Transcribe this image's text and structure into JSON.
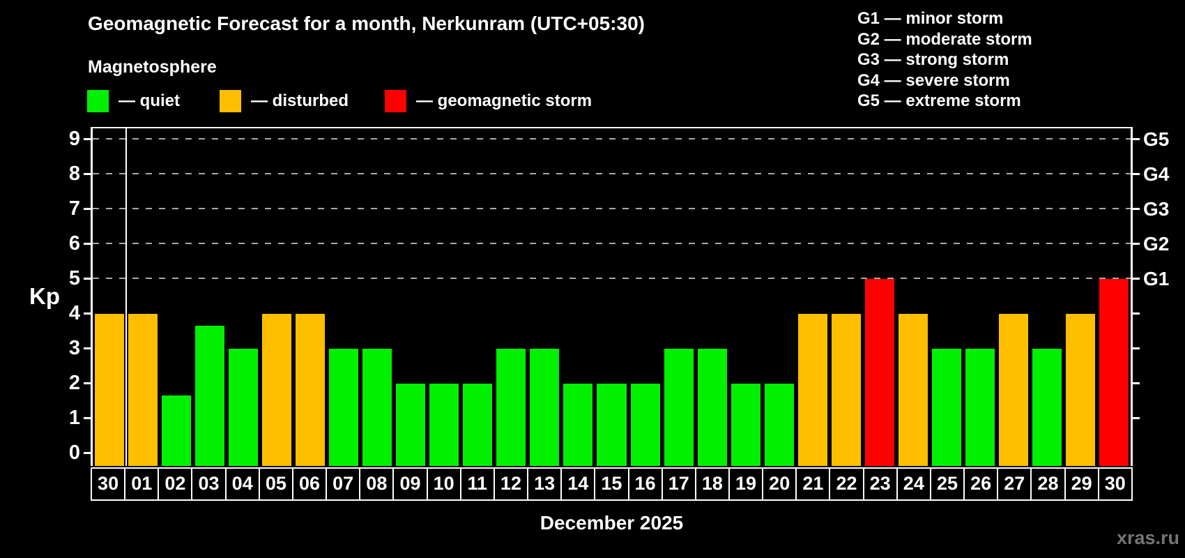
{
  "header": {
    "title": "Geomagnetic Forecast for a month, Nerkunram (UTC+05:30)",
    "subtitle": "Magnetosphere"
  },
  "legend": {
    "quiet": "— quiet",
    "disturbed": "— disturbed",
    "storm": "— geomagnetic storm"
  },
  "g_scale": [
    "G1 — minor storm",
    "G2 — moderate storm",
    "G3 — strong storm",
    "G4 — severe storm",
    "G5 — extreme storm"
  ],
  "footer": {
    "caption": "December 2025",
    "watermark": "xras.ru"
  },
  "chart_data": {
    "type": "bar",
    "title": "Geomagnetic Forecast for a month, Nerkunram (UTC+05:30)",
    "ylabel": "Kp",
    "xlabel": "December 2025",
    "ylim": [
      0,
      9
    ],
    "yticks": [
      0,
      1,
      2,
      3,
      4,
      5,
      6,
      7,
      8,
      9
    ],
    "gridlines_at": [
      5,
      6,
      7,
      8,
      9
    ],
    "grid": "dashed horizontal lines at storm levels only",
    "legend_position": "top-left",
    "right_axis": [
      {
        "kp": 5,
        "label": "G1"
      },
      {
        "kp": 6,
        "label": "G2"
      },
      {
        "kp": 7,
        "label": "G3"
      },
      {
        "kp": 8,
        "label": "G4"
      },
      {
        "kp": 9,
        "label": "G5"
      }
    ],
    "categories": [
      "30",
      "01",
      "02",
      "03",
      "04",
      "05",
      "06",
      "07",
      "08",
      "09",
      "10",
      "11",
      "12",
      "13",
      "14",
      "15",
      "16",
      "17",
      "18",
      "19",
      "20",
      "21",
      "22",
      "23",
      "24",
      "25",
      "26",
      "27",
      "28",
      "29",
      "30"
    ],
    "values": [
      4,
      4,
      1.67,
      3.67,
      3,
      4,
      4,
      3,
      3,
      2,
      2,
      2,
      3,
      3,
      2,
      2,
      2,
      3,
      3,
      2,
      2,
      4,
      4,
      5,
      4,
      3,
      3,
      4,
      3,
      4,
      5
    ],
    "states": [
      "disturbed",
      "disturbed",
      "quiet",
      "quiet",
      "quiet",
      "disturbed",
      "disturbed",
      "quiet",
      "quiet",
      "quiet",
      "quiet",
      "quiet",
      "quiet",
      "quiet",
      "quiet",
      "quiet",
      "quiet",
      "quiet",
      "quiet",
      "quiet",
      "quiet",
      "disturbed",
      "disturbed",
      "storm",
      "disturbed",
      "quiet",
      "quiet",
      "disturbed",
      "quiet",
      "disturbed",
      "storm"
    ],
    "month_separator_after_index": 0,
    "colors": {
      "quiet": "#00f000",
      "disturbed": "#ffbe00",
      "storm": "#ff0000",
      "grid": "#aaaaaa",
      "axis": "#ffffff",
      "background": "#000000",
      "watermark": "#757575"
    }
  }
}
